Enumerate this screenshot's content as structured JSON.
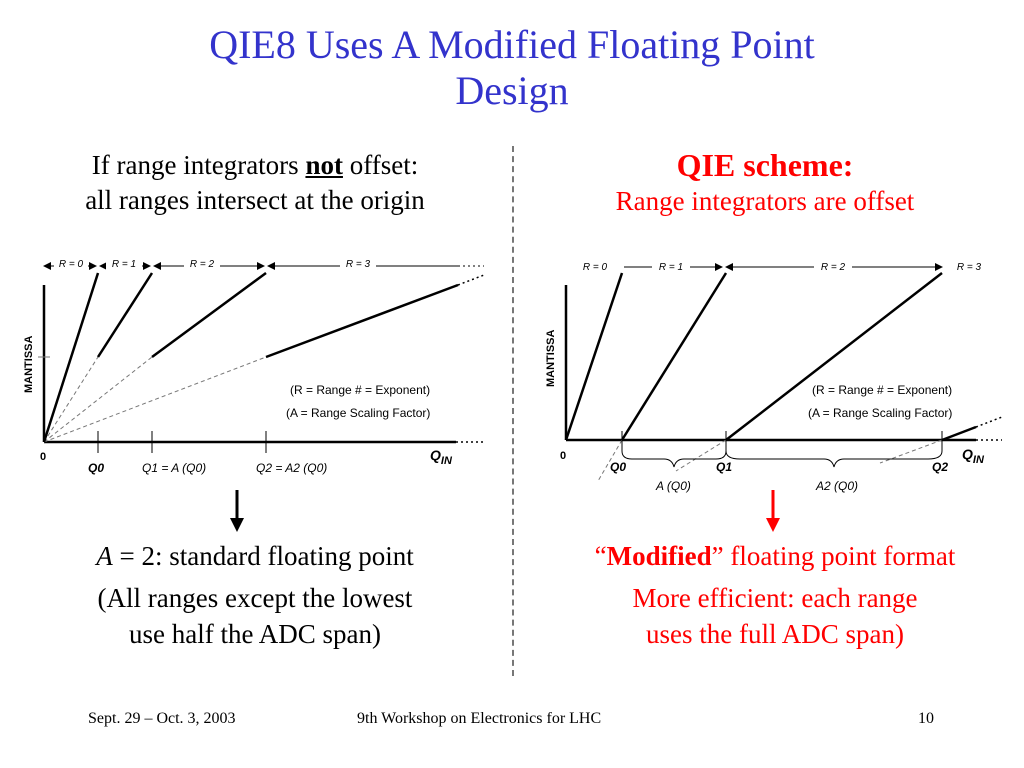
{
  "title": {
    "line1": "QIE8 Uses A Modified Floating Point",
    "line2": "Design"
  },
  "left": {
    "heading_pre": "If range integrators ",
    "heading_em": "not",
    "heading_post": " offset:",
    "heading_line2": "all ranges intersect at the origin",
    "bottom_var": "A",
    "bottom_line1": " = 2:  standard floating point",
    "bottom_line2": "(All ranges except the lowest",
    "bottom_line3": "use half the ADC span)"
  },
  "right": {
    "heading": "QIE scheme:",
    "subheading": "Range integrators are offset",
    "bottom_q_open": "“",
    "bottom_bold": "Modified",
    "bottom_rest": "” floating point format",
    "bottom_line2": "More efficient: each range",
    "bottom_line3": "uses the full ADC span)"
  },
  "diagram_left": {
    "ranges": [
      "R = 0",
      "R = 1",
      "R = 2",
      "R = 3"
    ],
    "ylabel": "MANTISSA",
    "origin": "0",
    "xlabel": "Q",
    "xlabel_sub": "IN",
    "legend1": "(R = Range # = Exponent)",
    "legend2": "(A = Range Scaling Factor)",
    "q0": "Q0",
    "q1": "Q1 = A (Q0)",
    "q2": "Q2 = A2 (Q0)"
  },
  "diagram_right": {
    "ranges": [
      "R = 0",
      "R = 1",
      "R = 2",
      "R = 3"
    ],
    "ylabel": "MANTISSA",
    "origin": "0",
    "xlabel": "Q",
    "xlabel_sub": "IN",
    "legend1": "(R = Range # = Exponent)",
    "legend2": "(A = Range Scaling Factor)",
    "q0": "Q0",
    "q1": "Q1",
    "q2": "Q2",
    "brace1": "A (Q0)",
    "brace2": "A2 (Q0)"
  },
  "footer": {
    "date": "Sept. 29 – Oct. 3, 2003",
    "event": "9th Workshop on Electronics for LHC",
    "page": "10"
  }
}
